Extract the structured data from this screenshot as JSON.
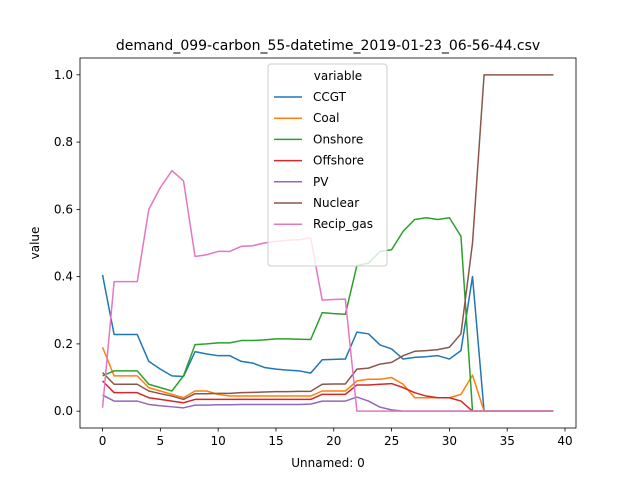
{
  "chart_data": {
    "type": "line",
    "title": "demand_099-carbon_55-datetime_2019-01-23_06-56-44.csv",
    "xlabel": "Unnamed: 0",
    "ylabel": "value",
    "xlim": [
      -1.95,
      40.95
    ],
    "ylim": [
      -0.05,
      1.05
    ],
    "xticks": [
      0,
      5,
      10,
      15,
      20,
      25,
      30,
      35,
      40
    ],
    "yticks": [
      0.0,
      0.2,
      0.4,
      0.6,
      0.8,
      1.0
    ],
    "xtick_labels": [
      "0",
      "5",
      "10",
      "15",
      "20",
      "25",
      "30",
      "35",
      "40"
    ],
    "ytick_labels": [
      "0.0",
      "0.2",
      "0.4",
      "0.6",
      "0.8",
      "1.0"
    ],
    "grid": false,
    "legend": {
      "title": "variable",
      "placement": "upper center"
    },
    "x": [
      0,
      1,
      2,
      3,
      4,
      5,
      6,
      7,
      8,
      9,
      10,
      11,
      12,
      13,
      14,
      15,
      16,
      17,
      18,
      19,
      20,
      21,
      22,
      23,
      24,
      25,
      26,
      27,
      28,
      29,
      30,
      31,
      32,
      33,
      34,
      35,
      36,
      37,
      38,
      39
    ],
    "series": [
      {
        "name": "CCGT",
        "color": "#1f77b4",
        "values": [
          0.405,
          0.228,
          0.228,
          0.228,
          0.148,
          0.125,
          0.105,
          0.103,
          0.177,
          0.17,
          0.165,
          0.165,
          0.148,
          0.143,
          0.13,
          0.125,
          0.122,
          0.12,
          0.113,
          0.153,
          0.154,
          0.155,
          0.235,
          0.23,
          0.197,
          0.185,
          0.155,
          0.16,
          0.162,
          0.165,
          0.155,
          0.18,
          0.4,
          0.0,
          0.0,
          0.0,
          0.0,
          0.0,
          0.0,
          0.0
        ]
      },
      {
        "name": "Coal",
        "color": "#ff7f0e",
        "values": [
          0.19,
          0.105,
          0.105,
          0.105,
          0.07,
          0.06,
          0.05,
          0.04,
          0.06,
          0.06,
          0.05,
          0.045,
          0.045,
          0.045,
          0.045,
          0.045,
          0.045,
          0.045,
          0.045,
          0.06,
          0.06,
          0.06,
          0.09,
          0.095,
          0.095,
          0.1,
          0.08,
          0.04,
          0.04,
          0.04,
          0.04,
          0.05,
          0.107,
          0.0,
          0.0,
          0.0,
          0.0,
          0.0,
          0.0,
          0.0
        ]
      },
      {
        "name": "Onshore",
        "color": "#2ca02c",
        "values": [
          0.105,
          0.12,
          0.12,
          0.12,
          0.08,
          0.07,
          0.06,
          0.105,
          0.198,
          0.2,
          0.203,
          0.203,
          0.21,
          0.21,
          0.212,
          0.215,
          0.215,
          0.214,
          0.213,
          0.293,
          0.29,
          0.288,
          0.433,
          0.44,
          0.475,
          0.48,
          0.535,
          0.57,
          0.575,
          0.57,
          0.575,
          0.52,
          0.0,
          0.0,
          0.0,
          0.0,
          0.0,
          0.0,
          0.0,
          0.0
        ]
      },
      {
        "name": "Offshore",
        "color": "#d62728",
        "values": [
          0.09,
          0.055,
          0.055,
          0.055,
          0.04,
          0.035,
          0.03,
          0.025,
          0.035,
          0.035,
          0.035,
          0.035,
          0.035,
          0.035,
          0.035,
          0.035,
          0.035,
          0.035,
          0.035,
          0.05,
          0.05,
          0.05,
          0.078,
          0.078,
          0.08,
          0.082,
          0.07,
          0.055,
          0.045,
          0.04,
          0.04,
          0.03,
          0.0,
          0.0,
          0.0,
          0.0,
          0.0,
          0.0,
          0.0,
          0.0
        ]
      },
      {
        "name": "PV",
        "color": "#9467bd",
        "values": [
          0.048,
          0.03,
          0.03,
          0.03,
          0.02,
          0.016,
          0.013,
          0.01,
          0.018,
          0.018,
          0.019,
          0.019,
          0.02,
          0.02,
          0.02,
          0.02,
          0.02,
          0.02,
          0.021,
          0.03,
          0.03,
          0.03,
          0.042,
          0.03,
          0.012,
          0.004,
          0.0,
          0.0,
          0.0,
          0.0,
          0.0,
          0.0,
          0.0,
          0.0,
          0.0,
          0.0,
          0.0,
          0.0,
          0.0,
          0.0
        ]
      },
      {
        "name": "Nuclear",
        "color": "#8c564b",
        "values": [
          0.115,
          0.08,
          0.08,
          0.08,
          0.06,
          0.052,
          0.045,
          0.035,
          0.052,
          0.052,
          0.053,
          0.053,
          0.055,
          0.056,
          0.057,
          0.058,
          0.058,
          0.059,
          0.059,
          0.08,
          0.081,
          0.081,
          0.125,
          0.128,
          0.14,
          0.145,
          0.165,
          0.178,
          0.18,
          0.183,
          0.19,
          0.23,
          0.5,
          1.0,
          1.0,
          1.0,
          1.0,
          1.0,
          1.0,
          1.0
        ]
      },
      {
        "name": "Recip_gas",
        "color": "#e377c2",
        "values": [
          0.01,
          0.385,
          0.385,
          0.385,
          0.6,
          0.665,
          0.715,
          0.685,
          0.46,
          0.465,
          0.475,
          0.475,
          0.49,
          0.492,
          0.5,
          0.505,
          0.508,
          0.51,
          0.515,
          0.33,
          0.332,
          0.333,
          0.0,
          0.0,
          0.0,
          0.0,
          0.0,
          0.0,
          0.0,
          0.0,
          0.0,
          0.0,
          0.0,
          0.0,
          0.0,
          0.0,
          0.0,
          0.0,
          0.0,
          0.0
        ]
      }
    ]
  }
}
